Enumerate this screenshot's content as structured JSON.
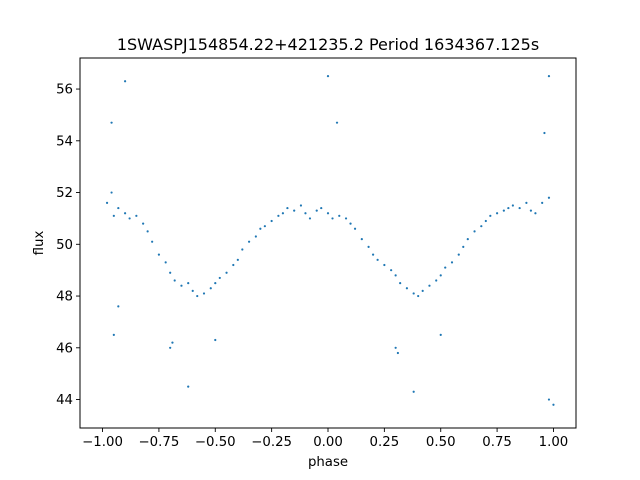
{
  "chart_data": {
    "type": "scatter",
    "title": "1SWASPJ154854.22+421235.2 Period 1634367.125s",
    "xlabel": "phase",
    "ylabel": "flux",
    "xlim": [
      -1.1,
      1.1
    ],
    "ylim": [
      42.9,
      57.2
    ],
    "xticks": [
      "−1.00",
      "−0.75",
      "−0.50",
      "−0.25",
      "0.00",
      "0.25",
      "0.50",
      "0.75",
      "1.00"
    ],
    "xtick_values": [
      -1.0,
      -0.75,
      -0.5,
      -0.25,
      0.0,
      0.25,
      0.5,
      0.75,
      1.0
    ],
    "yticks": [
      "44",
      "46",
      "48",
      "50",
      "52",
      "54",
      "56"
    ],
    "ytick_values": [
      44,
      46,
      48,
      50,
      52,
      54,
      56
    ],
    "grid": false,
    "point_color": "#1f77b4",
    "series": [
      {
        "x": [
          -0.98,
          -0.96,
          -0.95,
          -0.93,
          -0.9,
          -0.88,
          -0.85,
          -0.82,
          -0.8,
          -0.78,
          -0.75,
          -0.72,
          -0.7,
          -0.68,
          -0.65,
          -0.62,
          -0.6,
          -0.58,
          -0.55,
          -0.52,
          -0.5,
          -0.48,
          -0.45,
          -0.42,
          -0.4,
          -0.38,
          -0.35,
          -0.32,
          -0.3,
          -0.28,
          -0.25,
          -0.22,
          -0.2,
          -0.18,
          -0.15,
          -0.12,
          -0.1,
          -0.08,
          -0.05,
          -0.03,
          0.0,
          0.02,
          0.05,
          0.08,
          0.1,
          0.12,
          0.15,
          0.18,
          0.2,
          0.22,
          0.25,
          0.28,
          0.3,
          0.32,
          0.35,
          0.38,
          0.4,
          0.42,
          0.45,
          0.48,
          0.5,
          0.52,
          0.55,
          0.58,
          0.6,
          0.62,
          0.65,
          0.68,
          0.7,
          0.72,
          0.75,
          0.78,
          0.8,
          0.82,
          0.85,
          0.88,
          0.9,
          0.92,
          0.95,
          0.98,
          -0.96,
          -0.7,
          -0.62,
          -0.5,
          0.0,
          0.04,
          0.3,
          0.38,
          0.5,
          0.98,
          -0.95,
          -0.9,
          -0.69,
          0.31,
          0.98,
          1.0,
          -0.93,
          0.96
        ],
        "y": [
          51.6,
          52.0,
          51.1,
          51.4,
          51.2,
          51.0,
          51.1,
          50.8,
          50.5,
          50.1,
          49.6,
          49.3,
          48.9,
          48.6,
          48.4,
          48.5,
          48.2,
          48.0,
          48.1,
          48.3,
          48.5,
          48.7,
          48.9,
          49.2,
          49.4,
          49.8,
          50.1,
          50.3,
          50.6,
          50.7,
          50.9,
          51.1,
          51.2,
          51.4,
          51.3,
          51.5,
          51.2,
          51.0,
          51.3,
          51.4,
          51.2,
          51.0,
          51.1,
          51.0,
          50.8,
          50.6,
          50.2,
          49.9,
          49.6,
          49.4,
          49.2,
          49.0,
          48.8,
          48.5,
          48.3,
          48.1,
          48.0,
          48.2,
          48.4,
          48.6,
          48.8,
          49.1,
          49.3,
          49.6,
          49.9,
          50.2,
          50.5,
          50.7,
          50.9,
          51.1,
          51.2,
          51.3,
          51.4,
          51.5,
          51.4,
          51.6,
          51.3,
          51.2,
          51.6,
          51.8,
          54.7,
          46.0,
          44.5,
          46.3,
          56.5,
          54.7,
          46.0,
          44.3,
          46.5,
          56.5,
          46.5,
          56.3,
          46.2,
          45.8,
          44.0,
          43.8,
          47.6,
          54.3
        ]
      }
    ]
  }
}
